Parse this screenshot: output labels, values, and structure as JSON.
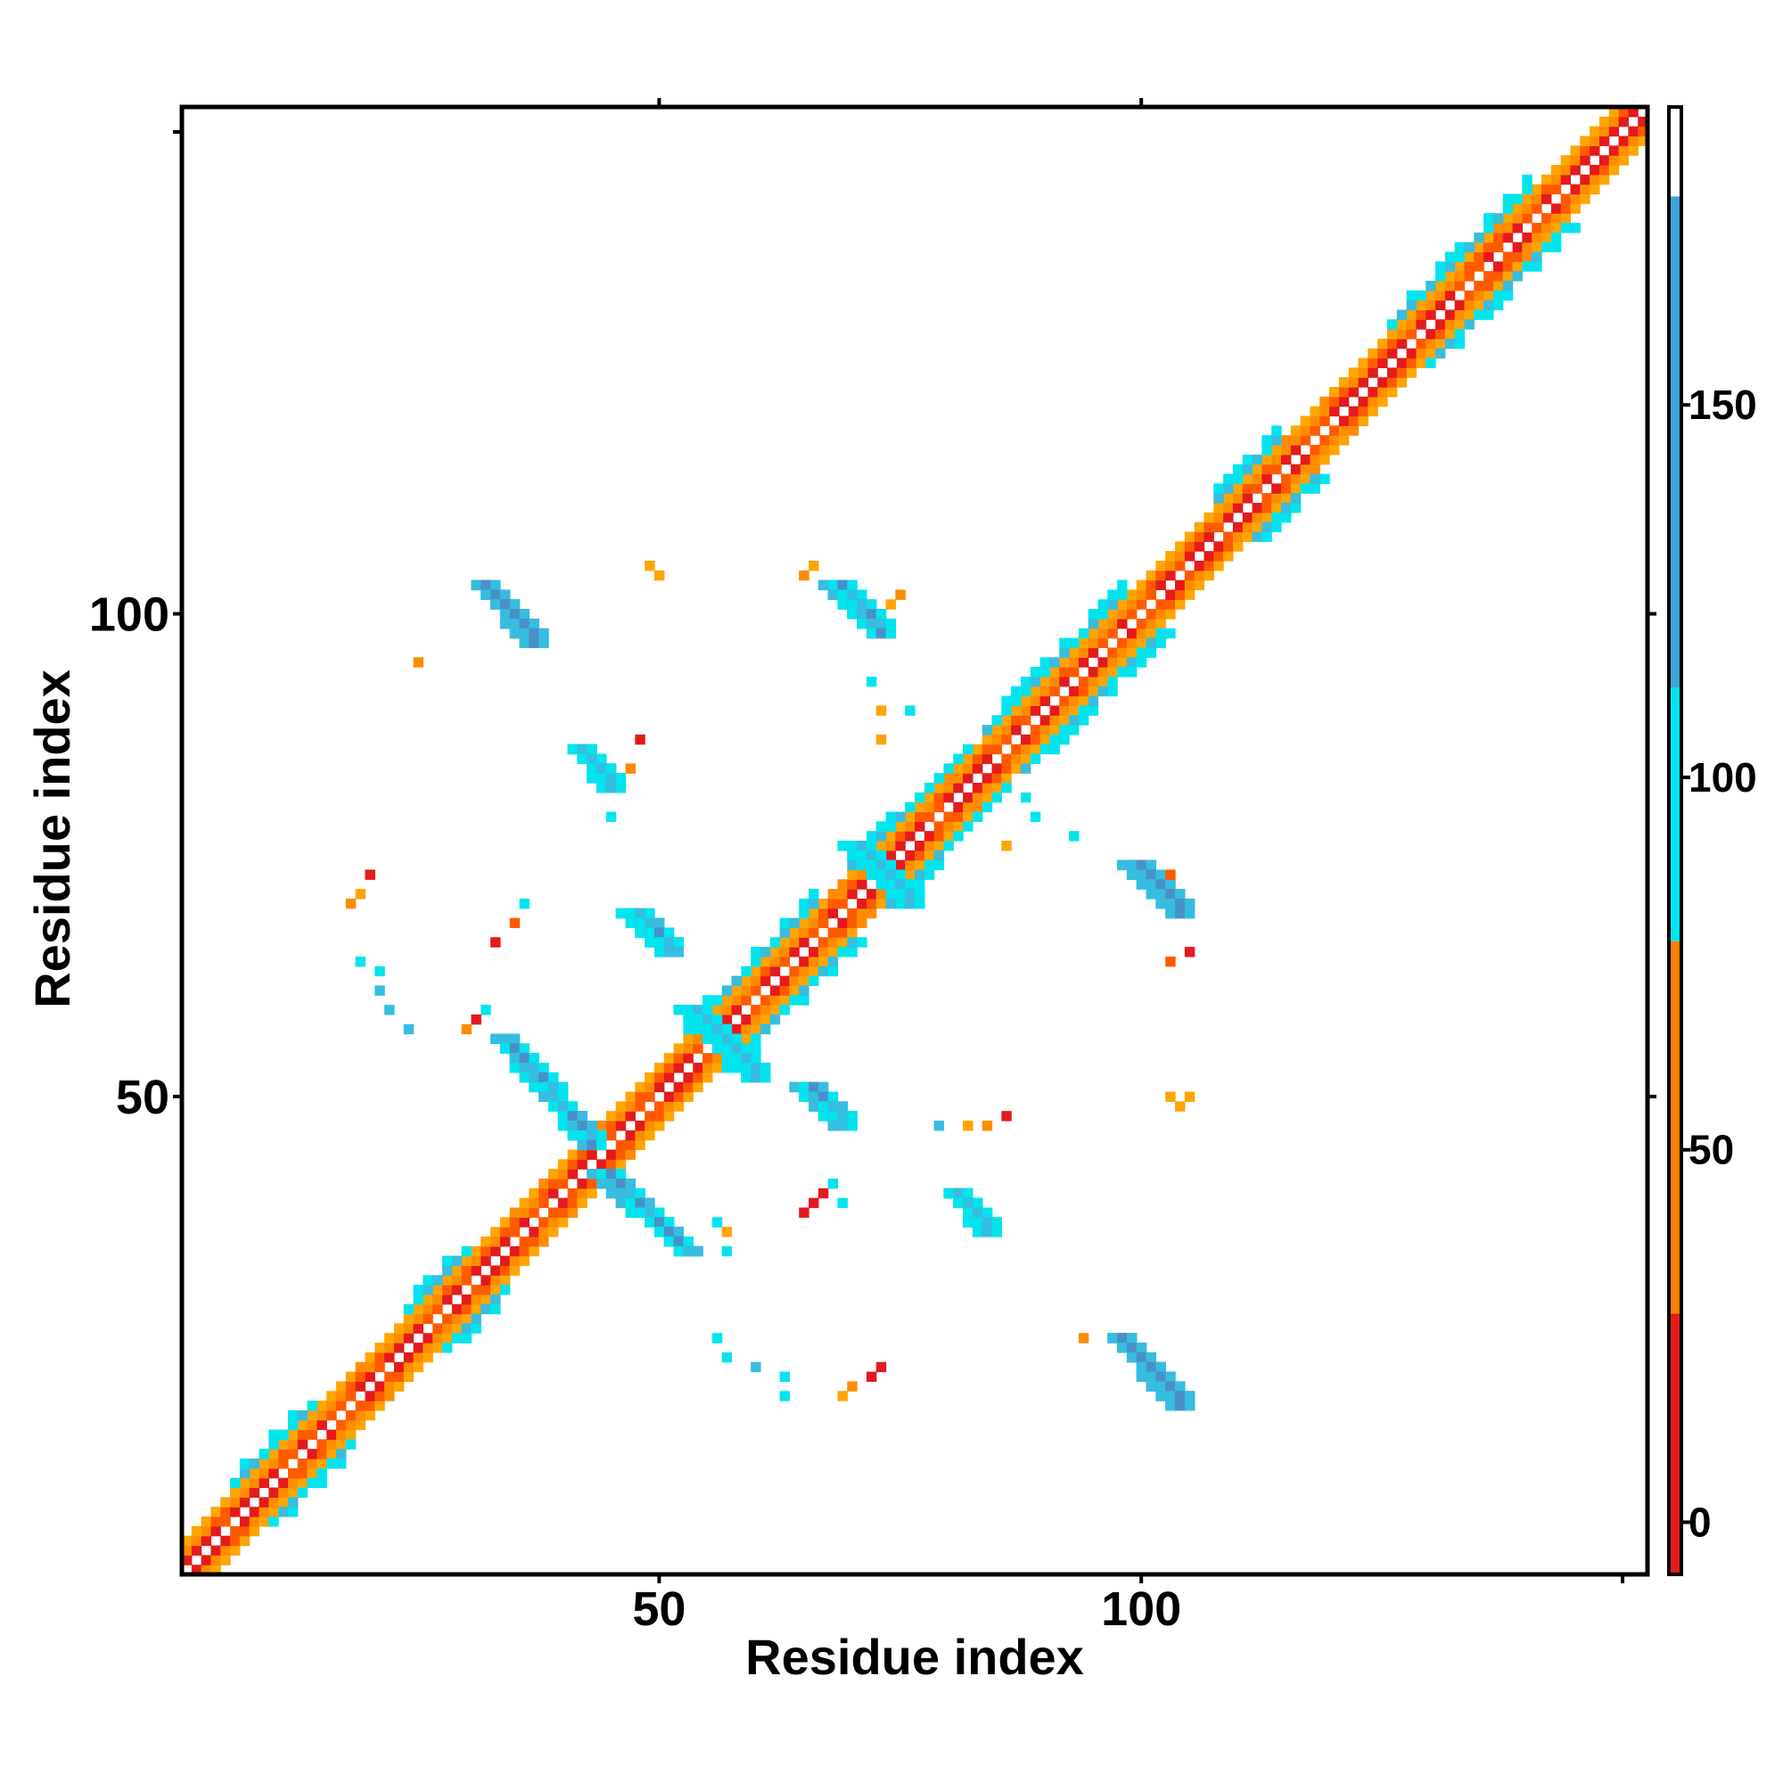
{
  "chart_data": {
    "type": "heatmap",
    "title": "",
    "xlabel": "Residue index",
    "ylabel": "Residue index",
    "n_residues": 152,
    "xlim": [
      1,
      152
    ],
    "ylim": [
      1,
      152
    ],
    "x_ticks": [
      50,
      100
    ],
    "y_ticks": [
      50,
      100
    ],
    "x_ticks_top": [
      50,
      100
    ],
    "y_ticks_right": [
      50,
      100
    ],
    "grid": false,
    "legend": "colorbar-right",
    "colorbar": {
      "ticks": [
        0,
        50,
        100,
        150
      ],
      "range": [
        -7,
        190
      ],
      "bands": [
        {
          "from": -7,
          "to": 28,
          "color": "#e31a1c"
        },
        {
          "from": 28,
          "to": 78,
          "color": "#ff7f00"
        },
        {
          "from": 78,
          "to": 112,
          "color": "#00e5ee"
        },
        {
          "from": 112,
          "to": 178,
          "color": "#3aa6d6"
        },
        {
          "from": 178,
          "to": 190,
          "color": "#ffffff"
        }
      ]
    },
    "colors": {
      "red": "#e41a1c",
      "orange_red": "#ff5a00",
      "orange": "#ff8c00",
      "amber": "#ffa500",
      "cyan": "#00e5ee",
      "sky": "#36bde0",
      "steel": "#4a90c8"
    },
    "contact_segments": [
      {
        "x1": 32,
        "y1": 103,
        "x2": 37,
        "y2": 97,
        "value": 140
      },
      {
        "x1": 68,
        "y1": 103,
        "x2": 73,
        "y2": 98,
        "value": 130
      },
      {
        "x1": 42,
        "y1": 86,
        "x2": 45,
        "y2": 82,
        "value": 125
      },
      {
        "x1": 47,
        "y1": 69,
        "x2": 51,
        "y2": 65,
        "value": 130
      },
      {
        "x1": 34,
        "y1": 56,
        "x2": 43,
        "y2": 45,
        "value": 130
      },
      {
        "x1": 44,
        "y1": 42,
        "x2": 53,
        "y2": 34,
        "value": 130
      },
      {
        "x1": 99,
        "y1": 74,
        "x2": 104,
        "y2": 69,
        "value": 140
      },
      {
        "x1": 98,
        "y1": 25,
        "x2": 104,
        "y2": 18,
        "value": 140
      },
      {
        "x1": 65,
        "y1": 51,
        "x2": 69,
        "y2": 47,
        "value": 130
      },
      {
        "x1": 70,
        "y1": 76,
        "x2": 76,
        "y2": 70,
        "value": 115
      },
      {
        "x1": 81,
        "y1": 40,
        "x2": 84,
        "y2": 36,
        "value": 120
      },
      {
        "x1": 53,
        "y1": 59,
        "x2": 60,
        "y2": 52,
        "value": 110
      }
    ],
    "scatter_cells": [
      {
        "x": 49,
        "y": 105,
        "value": 60
      },
      {
        "x": 50,
        "y": 104,
        "value": 60
      },
      {
        "x": 65,
        "y": 104,
        "value": 55
      },
      {
        "x": 66,
        "y": 105,
        "value": 60
      },
      {
        "x": 75,
        "y": 102,
        "value": 55
      },
      {
        "x": 74,
        "y": 101,
        "value": 65
      },
      {
        "x": 25,
        "y": 95,
        "value": 55
      },
      {
        "x": 72,
        "y": 93,
        "value": 95
      },
      {
        "x": 73,
        "y": 90,
        "value": 65
      },
      {
        "x": 76,
        "y": 90,
        "value": 95
      },
      {
        "x": 73,
        "y": 87,
        "value": 60
      },
      {
        "x": 48,
        "y": 87,
        "value": 20
      },
      {
        "x": 47,
        "y": 84,
        "value": 55
      },
      {
        "x": 46,
        "y": 83,
        "value": 60
      },
      {
        "x": 45,
        "y": 79,
        "value": 95
      },
      {
        "x": 20,
        "y": 73,
        "value": 20
      },
      {
        "x": 19,
        "y": 71,
        "value": 60
      },
      {
        "x": 18,
        "y": 70,
        "value": 45
      },
      {
        "x": 36,
        "y": 70,
        "value": 95
      },
      {
        "x": 35,
        "y": 68,
        "value": 35
      },
      {
        "x": 33,
        "y": 66,
        "value": 10
      },
      {
        "x": 19,
        "y": 64,
        "value": 95
      },
      {
        "x": 21,
        "y": 63,
        "value": 95
      },
      {
        "x": 21,
        "y": 61,
        "value": 130
      },
      {
        "x": 22,
        "y": 59,
        "value": 130
      },
      {
        "x": 24,
        "y": 57,
        "value": 130
      },
      {
        "x": 32,
        "y": 59,
        "value": 95
      },
      {
        "x": 31,
        "y": 58,
        "value": 20
      },
      {
        "x": 30,
        "y": 57,
        "value": 50
      },
      {
        "x": 82,
        "y": 47,
        "value": 60
      },
      {
        "x": 84,
        "y": 47,
        "value": 50
      },
      {
        "x": 86,
        "y": 48,
        "value": 20
      },
      {
        "x": 79,
        "y": 47,
        "value": 130
      },
      {
        "x": 88,
        "y": 81,
        "value": 95
      },
      {
        "x": 89,
        "y": 79,
        "value": 95
      },
      {
        "x": 93,
        "y": 77,
        "value": 95
      },
      {
        "x": 86,
        "y": 76,
        "value": 60
      },
      {
        "x": 93,
        "y": 91,
        "value": 130
      },
      {
        "x": 99,
        "y": 94,
        "value": 95
      },
      {
        "x": 103,
        "y": 73,
        "value": 25
      },
      {
        "x": 103,
        "y": 64,
        "value": 35
      },
      {
        "x": 105,
        "y": 65,
        "value": 20
      },
      {
        "x": 103,
        "y": 50,
        "value": 65
      },
      {
        "x": 104,
        "y": 49,
        "value": 60
      },
      {
        "x": 105,
        "y": 50,
        "value": 60
      },
      {
        "x": 65,
        "y": 38,
        "value": 20
      },
      {
        "x": 66,
        "y": 39,
        "value": 20
      },
      {
        "x": 67,
        "y": 40,
        "value": 20
      },
      {
        "x": 68,
        "y": 41,
        "value": 95
      },
      {
        "x": 69,
        "y": 39,
        "value": 95
      },
      {
        "x": 56,
        "y": 37,
        "value": 95
      },
      {
        "x": 57,
        "y": 36,
        "value": 60
      },
      {
        "x": 57,
        "y": 34,
        "value": 95
      },
      {
        "x": 56,
        "y": 25,
        "value": 95
      },
      {
        "x": 57,
        "y": 23,
        "value": 95
      },
      {
        "x": 60,
        "y": 22,
        "value": 130
      },
      {
        "x": 63,
        "y": 21,
        "value": 95
      },
      {
        "x": 63,
        "y": 19,
        "value": 95
      },
      {
        "x": 69,
        "y": 19,
        "value": 60
      },
      {
        "x": 70,
        "y": 20,
        "value": 55
      },
      {
        "x": 72,
        "y": 21,
        "value": 20
      },
      {
        "x": 73,
        "y": 22,
        "value": 15
      },
      {
        "x": 94,
        "y": 25,
        "value": 55
      }
    ]
  }
}
